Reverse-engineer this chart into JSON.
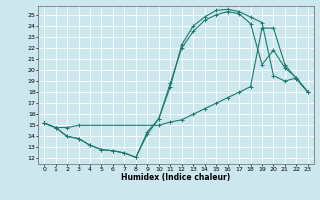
{
  "xlabel": "Humidex (Indice chaleur)",
  "bg_color": "#cce8ee",
  "line_color": "#1e7a6e",
  "grid_color": "#ffffff",
  "xlim": [
    -0.5,
    23.5
  ],
  "ylim": [
    11.5,
    25.8
  ],
  "xticks": [
    0,
    1,
    2,
    3,
    4,
    5,
    6,
    7,
    8,
    9,
    10,
    11,
    12,
    13,
    14,
    15,
    16,
    17,
    18,
    19,
    20,
    21,
    22,
    23
  ],
  "yticks": [
    12,
    13,
    14,
    15,
    16,
    17,
    18,
    19,
    20,
    21,
    22,
    23,
    24,
    25
  ],
  "line1_x": [
    0,
    1,
    2,
    3,
    4,
    5,
    6,
    7,
    8,
    9,
    10,
    11,
    12,
    13,
    14,
    15,
    16,
    17,
    18,
    19,
    20,
    21,
    22,
    23
  ],
  "line1_y": [
    15.2,
    14.8,
    14.0,
    13.8,
    13.2,
    12.8,
    12.7,
    12.5,
    12.1,
    14.4,
    15.6,
    18.5,
    22.3,
    24.0,
    24.8,
    25.4,
    25.5,
    25.3,
    24.8,
    24.3,
    19.5,
    19.0,
    19.3,
    18.0
  ],
  "line2_x": [
    0,
    1,
    2,
    3,
    4,
    5,
    6,
    7,
    8,
    9,
    10,
    11,
    12,
    13,
    14,
    15,
    16,
    17,
    18,
    19,
    20,
    21,
    22,
    23
  ],
  "line2_y": [
    15.2,
    14.8,
    14.0,
    13.8,
    13.2,
    12.8,
    12.7,
    12.5,
    12.1,
    14.2,
    15.6,
    18.8,
    22.0,
    23.5,
    24.5,
    25.0,
    25.3,
    25.1,
    24.2,
    20.5,
    21.8,
    20.2,
    19.3,
    18.0
  ],
  "line3_x": [
    0,
    1,
    2,
    3,
    10,
    11,
    12,
    13,
    14,
    15,
    16,
    17,
    18,
    19,
    20,
    21,
    22,
    23
  ],
  "line3_y": [
    15.2,
    14.8,
    14.8,
    15.0,
    15.0,
    15.3,
    15.5,
    16.0,
    16.5,
    17.0,
    17.5,
    18.0,
    18.5,
    23.8,
    23.8,
    20.5,
    19.2,
    18.0
  ]
}
